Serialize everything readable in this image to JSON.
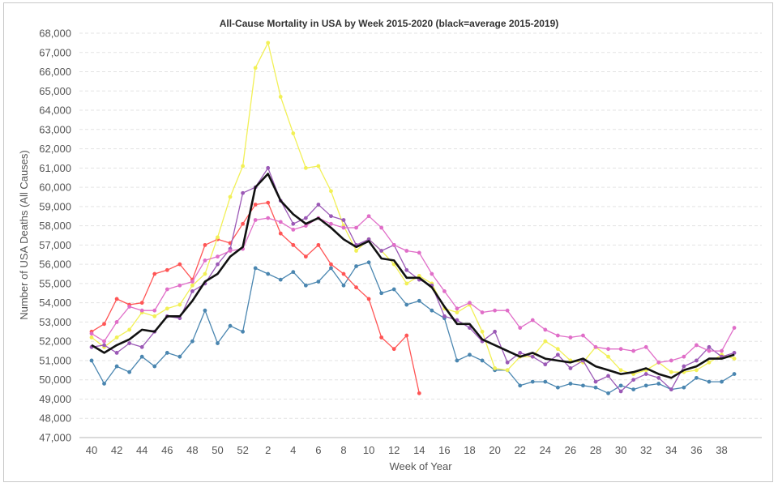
{
  "chart_data": {
    "type": "line",
    "title": "All-Cause Mortality in USA by Week 2015-2020 (black=average 2015-2019)",
    "xlabel": "Week of Year",
    "ylabel": "Number of USA Deaths (All Causes)",
    "ylim": [
      47000,
      68000
    ],
    "ytick_step": 1000,
    "grid": "horizontal dashed",
    "x_tick_labels": [
      "40",
      "42",
      "44",
      "46",
      "48",
      "50",
      "52",
      "2",
      "4",
      "6",
      "8",
      "10",
      "12",
      "14",
      "16",
      "18",
      "20",
      "22",
      "24",
      "26",
      "28",
      "30",
      "32",
      "34",
      "36",
      "38"
    ],
    "weeks": [
      40,
      41,
      42,
      43,
      44,
      45,
      46,
      47,
      48,
      49,
      50,
      51,
      52,
      1,
      2,
      3,
      4,
      5,
      6,
      7,
      8,
      9,
      10,
      11,
      12,
      13,
      14,
      15,
      16,
      17,
      18,
      19,
      20,
      21,
      22,
      23,
      24,
      25,
      26,
      27,
      28,
      29,
      30,
      31,
      32,
      33,
      34,
      35,
      36,
      37,
      38,
      39
    ],
    "series": [
      {
        "color": "#4a86b0",
        "values": [
          51000,
          49800,
          50700,
          50400,
          51200,
          50700,
          51400,
          51200,
          52000,
          53600,
          51900,
          52800,
          52500,
          55800,
          55500,
          55200,
          55600,
          54900,
          55100,
          55800,
          54900,
          55900,
          56100,
          54500,
          54700,
          53900,
          54100,
          53600,
          53200,
          51000,
          51300,
          51000,
          50500,
          50500,
          49700,
          49900,
          49900,
          49600,
          49800,
          49700,
          49600,
          49300,
          49700,
          49500,
          49700,
          49800,
          49500,
          49600,
          50100,
          49900,
          49900,
          50300
        ]
      },
      {
        "color": "#ff5555",
        "values": [
          52500,
          52900,
          54200,
          53900,
          54000,
          55500,
          55700,
          56000,
          55200,
          57000,
          57300,
          57100,
          58100,
          59100,
          59200,
          57600,
          57000,
          56400,
          57000,
          56000,
          55500,
          54800,
          54200,
          52200,
          51600,
          52300,
          49300
        ]
      },
      {
        "color": "#f2f056",
        "values": [
          52200,
          51700,
          52200,
          52600,
          53500,
          53300,
          53700,
          53900,
          54900,
          55500,
          57400,
          59500,
          61100,
          66200,
          67500,
          64700,
          62800,
          61000,
          61100,
          59800,
          58000,
          56700,
          57300,
          56700,
          56000,
          55000,
          55400,
          55000,
          53700,
          53500,
          53900,
          52500,
          50600,
          50500,
          51200,
          51200,
          52000,
          51600,
          51000,
          50900,
          51700,
          51200,
          50500,
          50300,
          50500,
          50900,
          50400,
          50400,
          50500,
          50900,
          51300,
          51100
        ]
      },
      {
        "color": "#9b59b6",
        "values": [
          51700,
          51800,
          51400,
          51900,
          51700,
          52500,
          53300,
          53200,
          54600,
          55000,
          56000,
          56800,
          59700,
          60000,
          61000,
          59300,
          58100,
          58400,
          59100,
          58500,
          58300,
          57000,
          57300,
          56700,
          57000,
          55700,
          55200,
          54900,
          53300,
          53100,
          52700,
          52000,
          52500,
          50900,
          51400,
          51200,
          50800,
          51300,
          50600,
          51000,
          49900,
          50200,
          49400,
          50000,
          50300,
          50100,
          49500,
          50700,
          51000,
          51700,
          51200,
          51400
        ]
      },
      {
        "color": "#e06ec8",
        "values": [
          52400,
          52000,
          53000,
          53800,
          53600,
          53600,
          54700,
          54900,
          55100,
          56200,
          56400,
          56700,
          56800,
          58300,
          58400,
          58200,
          57800,
          58000,
          58400,
          58100,
          57900,
          57900,
          58500,
          57900,
          57000,
          56700,
          56600,
          55500,
          54600,
          53700,
          54000,
          53500,
          53600,
          53600,
          52700,
          53100,
          52600,
          52300,
          52200,
          52300,
          51700,
          51600,
          51600,
          51500,
          51700,
          50900,
          51000,
          51200,
          51800,
          51500,
          51500,
          52700
        ]
      },
      {
        "color": "#111111",
        "values": [
          51800,
          51400,
          51800,
          52100,
          52600,
          52500,
          53300,
          53300,
          54100,
          55100,
          55500,
          56400,
          56900,
          60000,
          60700,
          59300,
          58600,
          58100,
          58400,
          57900,
          57300,
          56900,
          57200,
          56300,
          56200,
          55300,
          55300,
          54800,
          53800,
          52900,
          52900,
          52100,
          51800,
          51500,
          51200,
          51400,
          51100,
          51000,
          50900,
          51100,
          50700,
          50500,
          50300,
          50400,
          50600,
          50300,
          50100,
          50500,
          50700,
          51100,
          51100,
          51300
        ]
      }
    ]
  }
}
